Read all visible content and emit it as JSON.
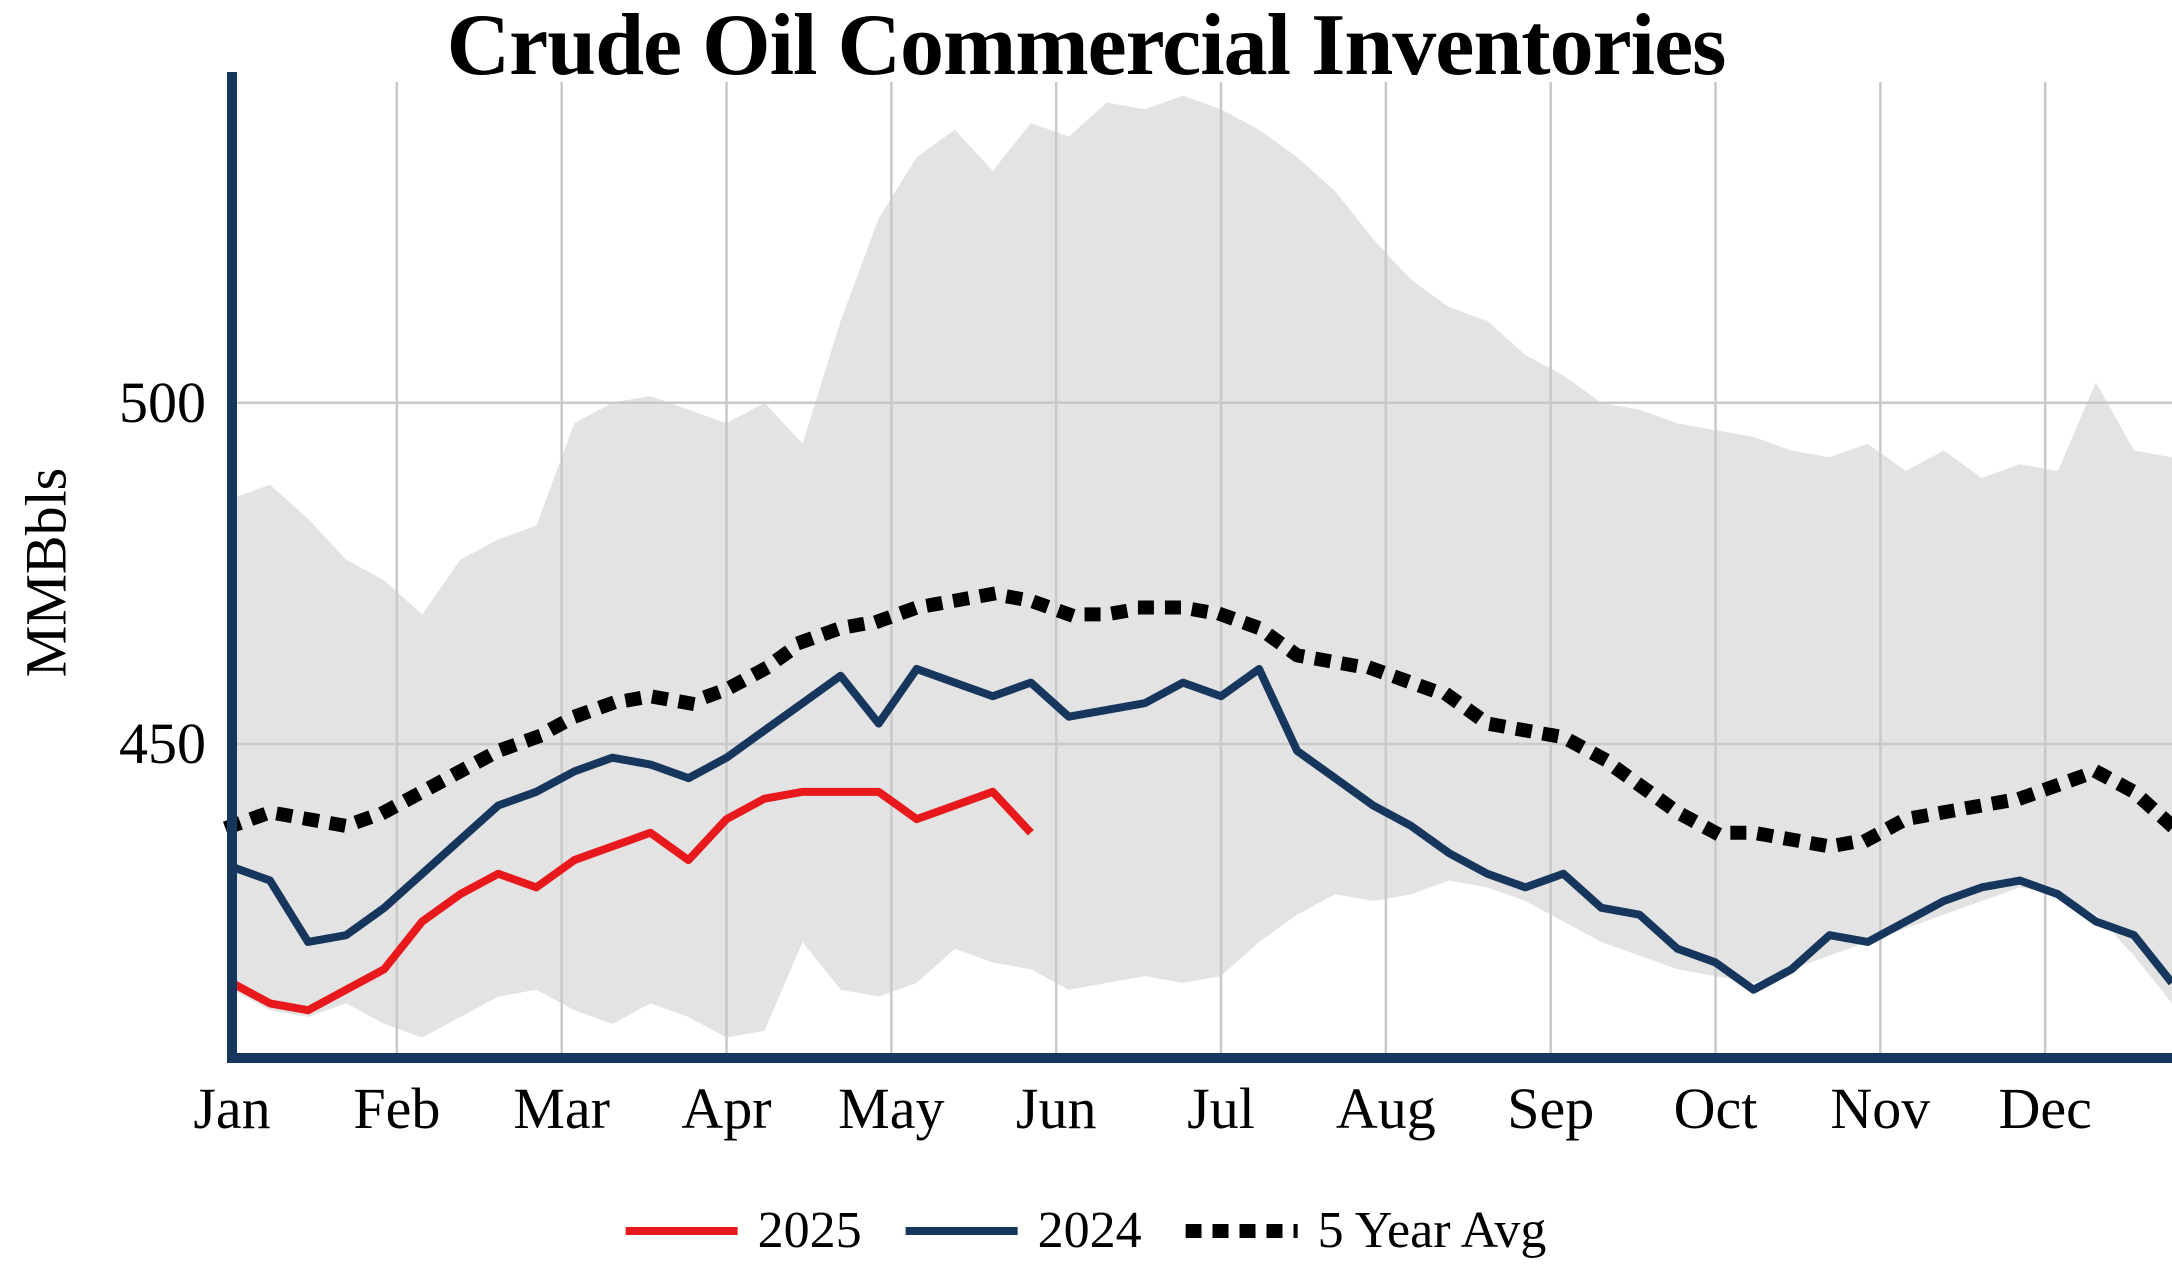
{
  "title": "Crude Oil Commercial Inventories",
  "legend": [
    {
      "label": "2025",
      "color": "#e8191c",
      "style": "solid"
    },
    {
      "label": "2024",
      "color": "#17365d",
      "style": "solid"
    },
    {
      "label": "5 Year Avg",
      "color": "#000000",
      "style": "dotted"
    }
  ],
  "chart_data": {
    "type": "line",
    "title": "Crude Oil Commercial Inventories",
    "xlabel": "",
    "ylabel": "MMBbls",
    "ylim": [
      404,
      547
    ],
    "yticks": [
      450,
      500
    ],
    "x_unit": "week",
    "weeks": 52,
    "month_labels": [
      "Jan",
      "Feb",
      "Mar",
      "Apr",
      "May",
      "Jun",
      "Jul",
      "Aug",
      "Sep",
      "Oct",
      "Nov",
      "Dec"
    ],
    "grid": true,
    "grid_color": "#c9c9c9",
    "axis_color": "#17365d",
    "legend_position": "bottom",
    "band": {
      "name": "5 Year Range",
      "color": "#e3e3e3",
      "max": [
        486,
        488,
        483,
        477,
        474,
        469,
        477,
        480,
        482,
        497,
        500,
        501,
        499,
        497,
        500,
        494,
        512,
        527,
        536,
        540,
        534,
        541,
        539,
        544,
        543,
        545,
        543,
        540,
        536,
        531,
        524,
        518,
        514,
        512,
        507,
        504,
        500,
        499,
        497,
        496,
        495,
        493,
        492,
        494,
        490,
        493,
        489,
        491,
        490,
        503,
        493,
        492
      ],
      "min": [
        414,
        411,
        410,
        412,
        409,
        407,
        410,
        413,
        414,
        411,
        409,
        412,
        410,
        407,
        408,
        421,
        414,
        413,
        415,
        420,
        418,
        417,
        414,
        415,
        416,
        415,
        416,
        421,
        425,
        428,
        427,
        428,
        430,
        429,
        427,
        424,
        421,
        419,
        417,
        416,
        415,
        417,
        419,
        421,
        423,
        425,
        427,
        429,
        428,
        425,
        419,
        412
      ]
    },
    "series": [
      {
        "name": "5 Year Avg",
        "color": "#000000",
        "style": "dotted",
        "values": [
          438,
          440,
          439,
          438,
          440,
          443,
          446,
          449,
          451,
          454,
          456,
          457,
          456,
          458,
          461,
          465,
          467,
          468,
          470,
          471,
          472,
          471,
          469,
          469,
          470,
          470,
          469,
          467,
          463,
          462,
          461,
          459,
          457,
          453,
          452,
          451,
          448,
          444,
          440,
          437,
          437,
          436,
          435,
          436,
          439,
          440,
          441,
          442,
          444,
          446,
          443,
          438
        ]
      },
      {
        "name": "2024",
        "color": "#17365d",
        "style": "solid",
        "values": [
          432,
          430,
          421,
          422,
          426,
          431,
          436,
          441,
          443,
          446,
          448,
          447,
          445,
          448,
          452,
          456,
          460,
          453,
          461,
          459,
          457,
          459,
          454,
          455,
          456,
          459,
          457,
          461,
          449,
          445,
          441,
          438,
          434,
          431,
          429,
          431,
          426,
          425,
          420,
          418,
          414,
          417,
          422,
          421,
          424,
          427,
          429,
          430,
          428,
          424,
          422,
          415
        ]
      },
      {
        "name": "2025",
        "color": "#e8191c",
        "style": "solid",
        "values": [
          415,
          412,
          411,
          414,
          417,
          424,
          428,
          431,
          429,
          433,
          435,
          437,
          433,
          439,
          442,
          443,
          443,
          443,
          439,
          441,
          443,
          437
        ]
      }
    ]
  }
}
